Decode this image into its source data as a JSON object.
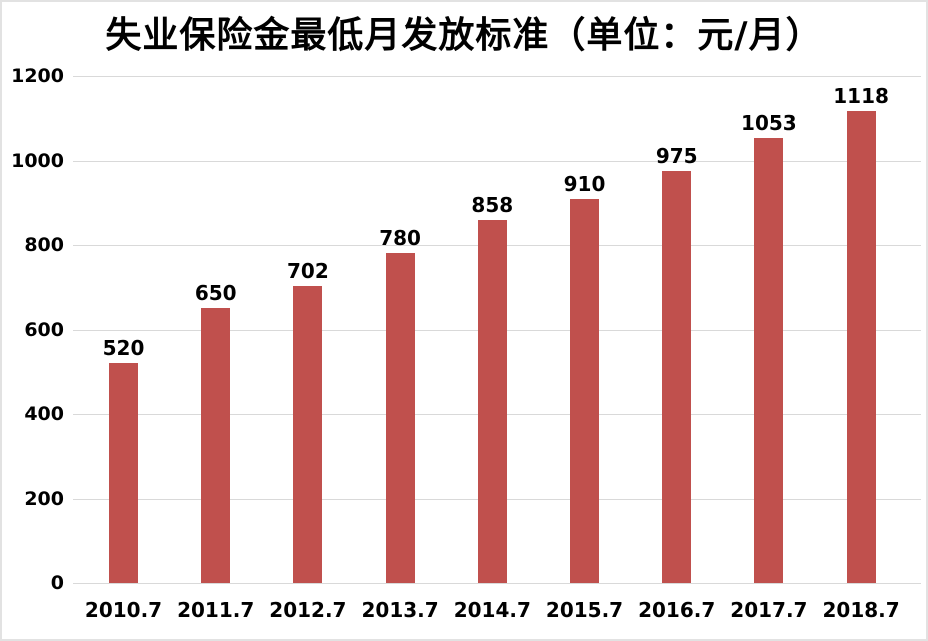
{
  "chart_data": {
    "type": "bar",
    "title": "失业保险金最低月发放标准（单位：元/月）",
    "categories": [
      "2010.7",
      "2011.7",
      "2012.7",
      "2013.7",
      "2014.7",
      "2015.7",
      "2016.7",
      "2017.7",
      "2018.7"
    ],
    "values": [
      520,
      650,
      702,
      780,
      858,
      910,
      975,
      1053,
      1118
    ],
    "series_name": "失业保险金最低月发放标准",
    "xlabel": "",
    "ylabel": "",
    "ylim": [
      0,
      1200
    ],
    "yticks": [
      0,
      200,
      400,
      600,
      800,
      1000,
      1200
    ],
    "grid": "horizontal",
    "legend_position": "none",
    "data_labels": "above-bars",
    "colors": {
      "bar_fill": "#C0504D",
      "gridline": "#D9D9D9",
      "text": "#000000",
      "background": "#FFFFFF",
      "frame_border": "#E2E2E2"
    }
  }
}
